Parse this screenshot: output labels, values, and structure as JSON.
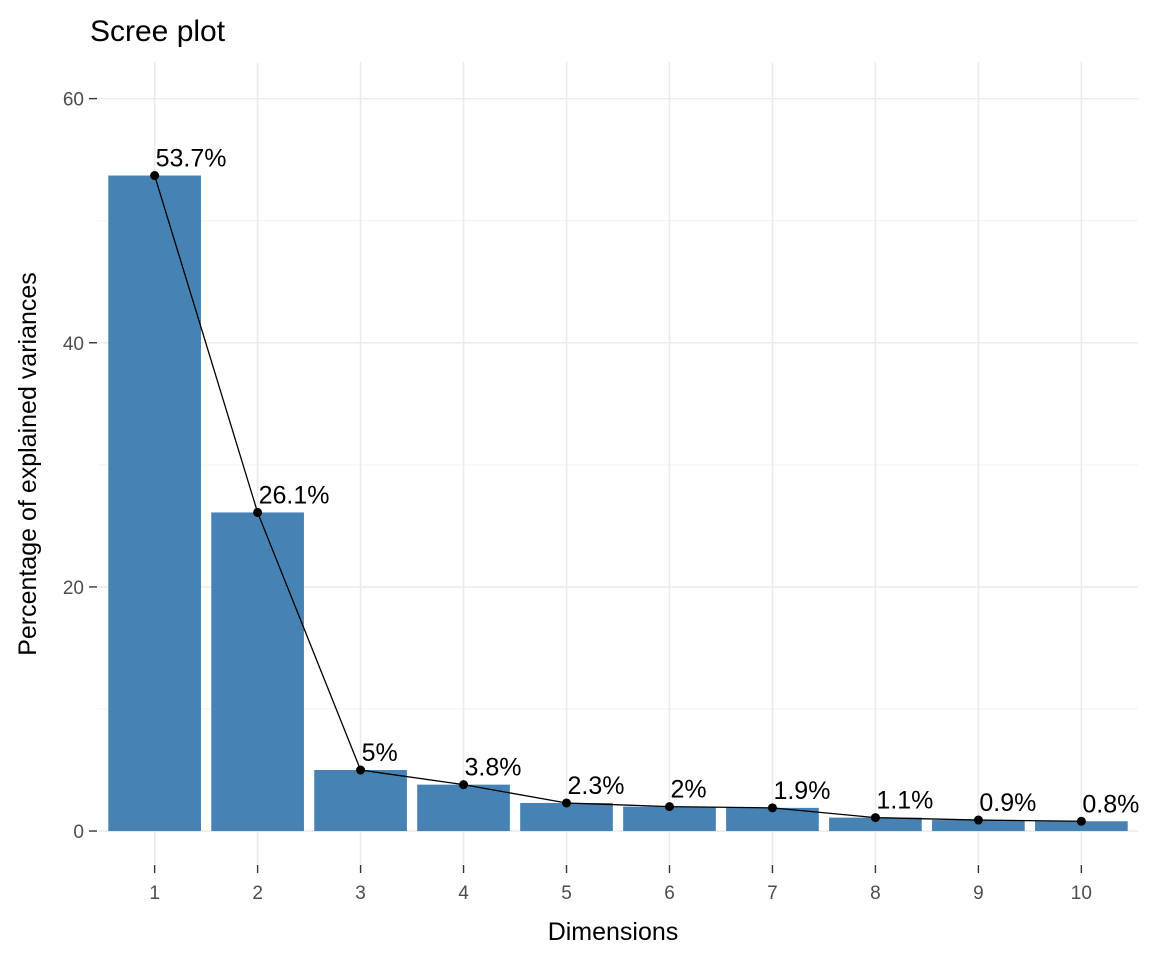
{
  "chart_data": {
    "type": "bar",
    "title": "Scree plot",
    "xlabel": "Dimensions",
    "ylabel": "Percentage of explained variances",
    "categories": [
      "1",
      "2",
      "3",
      "4",
      "5",
      "6",
      "7",
      "8",
      "9",
      "10"
    ],
    "values": [
      53.7,
      26.1,
      5.0,
      3.8,
      2.3,
      2.0,
      1.9,
      1.1,
      0.9,
      0.8
    ],
    "data_labels": [
      "53.7%",
      "26.1%",
      "5%",
      "3.8%",
      "2.3%",
      "2%",
      "1.9%",
      "1.1%",
      "0.9%",
      "0.8%"
    ],
    "y_ticks": [
      0,
      20,
      40,
      60
    ],
    "ylim": [
      -2.7,
      63
    ],
    "bar_color": "#4682b4",
    "line_color": "#000000",
    "overlay": "line-with-points",
    "grid": true,
    "legend": "none"
  }
}
